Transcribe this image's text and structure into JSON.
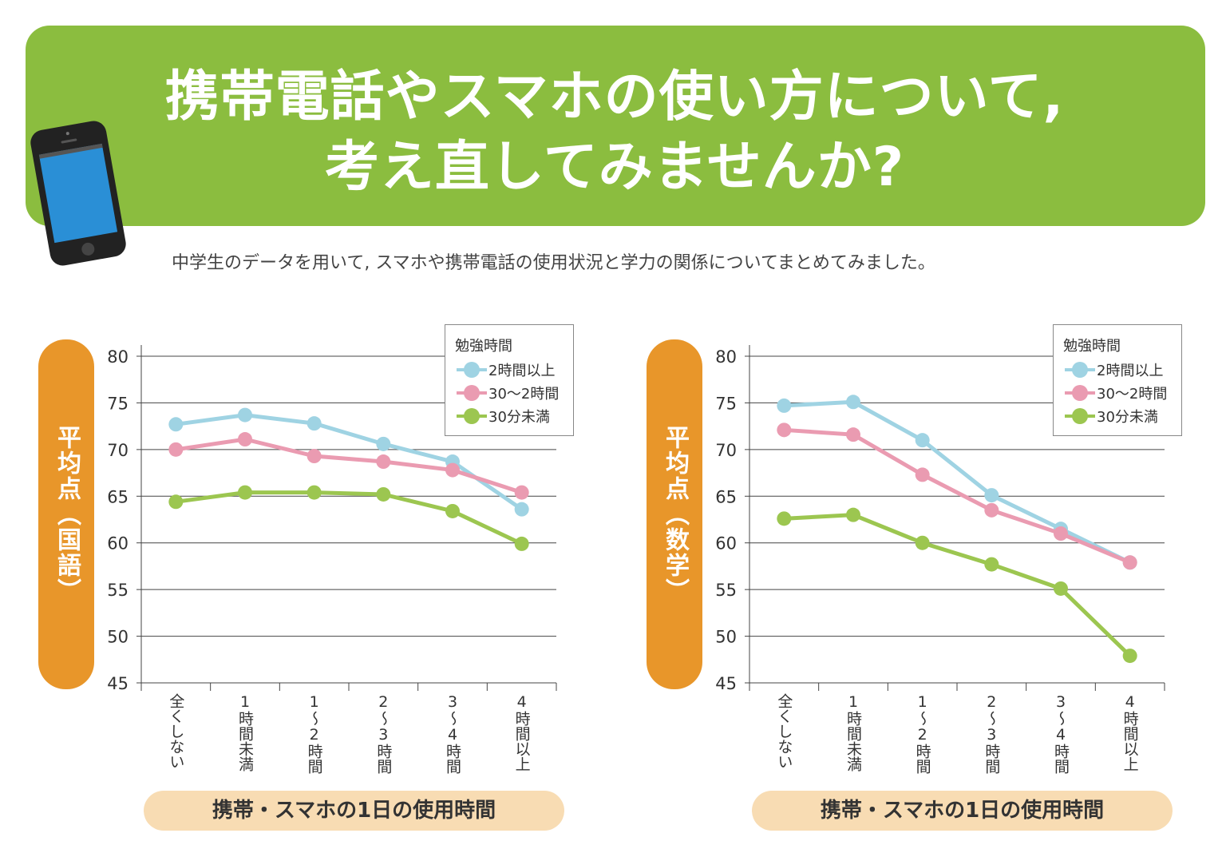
{
  "header": {
    "title_line1": "携帯電話やスマホの使い方について,",
    "title_line2": "考え直してみませんか?",
    "subtitle": "中学生のデータを用いて, スマホや携帯電話の使用状況と学力の関係についてまとめてみました。",
    "icon": "smartphone-icon",
    "banner_color": "#8bbd3f"
  },
  "chart_data": [
    {
      "type": "line",
      "ylabel": "平均点（国語）",
      "xlabel": "携帯・スマホの1日の使用時間",
      "categories": [
        "全くしない",
        "1時間未満",
        "1〜2時間",
        "2〜3時間",
        "3〜4時間",
        "4時間以上"
      ],
      "ylim": [
        45,
        80
      ],
      "yticks": [
        80,
        75,
        70,
        65,
        60,
        55,
        50,
        45
      ],
      "grid": true,
      "legend_title": "勉強時間",
      "legend_position": "top-right",
      "series": [
        {
          "name": "2時間以上",
          "color": "#9fd3e3",
          "values": [
            72.7,
            73.7,
            72.8,
            70.6,
            68.7,
            63.6
          ]
        },
        {
          "name": "30〜2時間",
          "color": "#ea9bb1",
          "values": [
            70.0,
            71.1,
            69.3,
            68.7,
            67.8,
            65.4
          ]
        },
        {
          "name": "30分未満",
          "color": "#9cc650",
          "values": [
            64.4,
            65.4,
            65.4,
            65.2,
            63.4,
            59.9
          ]
        }
      ]
    },
    {
      "type": "line",
      "ylabel": "平均点（数学）",
      "xlabel": "携帯・スマホの1日の使用時間",
      "categories": [
        "全くしない",
        "1時間未満",
        "1〜2時間",
        "2〜3時間",
        "3〜4時間",
        "4時間以上"
      ],
      "ylim": [
        45,
        80
      ],
      "yticks": [
        80,
        75,
        70,
        65,
        60,
        55,
        50,
        45
      ],
      "grid": true,
      "legend_title": "勉強時間",
      "legend_position": "top-right",
      "series": [
        {
          "name": "2時間以上",
          "color": "#9fd3e3",
          "values": [
            74.7,
            75.1,
            71.0,
            65.1,
            61.5,
            57.9
          ]
        },
        {
          "name": "30〜2時間",
          "color": "#ea9bb1",
          "values": [
            72.1,
            71.6,
            67.3,
            63.5,
            61.0,
            57.9
          ]
        },
        {
          "name": "30分未満",
          "color": "#9cc650",
          "values": [
            62.6,
            63.0,
            60.0,
            57.7,
            55.1,
            47.9
          ]
        }
      ]
    }
  ]
}
